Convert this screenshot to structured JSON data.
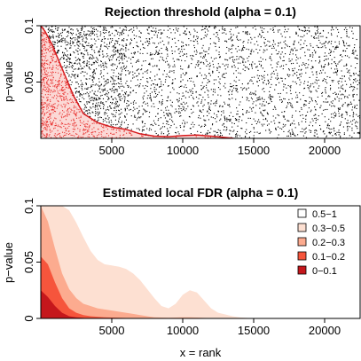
{
  "chart_data": [
    {
      "type": "scatter",
      "title": "Rejection threshold (alpha = 0.1)",
      "xlabel": "",
      "ylabel": "p−value",
      "xlim": [
        0,
        22500
      ],
      "ylim": [
        0,
        0.1
      ],
      "x_ticks": [
        5000,
        10000,
        15000,
        20000
      ],
      "x_tick_labels": [
        "5000",
        "10000",
        "15000",
        "20000"
      ],
      "y_ticks": [
        0.05,
        0.1
      ],
      "y_tick_labels": [
        "0.05",
        "0.1"
      ],
      "n_points": 4000,
      "point_color": "#000000",
      "rejected_color": "#e8312f",
      "threshold_color": "#d7191c",
      "threshold": {
        "x": [
          0,
          300,
          800,
          1500,
          2300,
          3000,
          4000,
          5000,
          6000,
          7000,
          8000,
          9000,
          10000,
          11000,
          12000,
          13000,
          13600
        ],
        "y": [
          0.1,
          0.095,
          0.083,
          0.062,
          0.038,
          0.022,
          0.014,
          0.01,
          0.008,
          0.004,
          0.002,
          0.0015,
          0.0025,
          0.003,
          0.002,
          0.0008,
          0
        ]
      }
    },
    {
      "type": "area",
      "title": "Estimated local FDR (alpha = 0.1)",
      "xlabel": "x = rank",
      "ylabel": "p−value",
      "xlim": [
        0,
        22500
      ],
      "ylim": [
        0,
        0.1
      ],
      "x_ticks": [
        5000,
        10000,
        15000,
        20000
      ],
      "x_tick_labels": [
        "5000",
        "10000",
        "15000",
        "20000"
      ],
      "y_ticks": [
        0,
        0.05,
        0.1
      ],
      "y_tick_labels": [
        "0",
        "0.05",
        "0.1"
      ],
      "legend_position": "top-right",
      "x": [
        0,
        500,
        1000,
        1500,
        2000,
        2500,
        3000,
        3500,
        4000,
        4500,
        5000,
        5500,
        6000,
        6500,
        7000,
        7500,
        8000,
        8500,
        9000,
        9500,
        10000,
        10500,
        11000,
        11500,
        12000,
        12500,
        13000,
        13500,
        14000,
        14500,
        15000
      ],
      "series": [
        {
          "name": "0.3−0.5",
          "color": "#fde0d2",
          "values": [
            0.1,
            0.1,
            0.1,
            0.1,
            0.096,
            0.085,
            0.072,
            0.06,
            0.052,
            0.048,
            0.047,
            0.046,
            0.044,
            0.04,
            0.034,
            0.026,
            0.018,
            0.011,
            0.009,
            0.013,
            0.021,
            0.025,
            0.023,
            0.016,
            0.009,
            0.005,
            0.0035,
            0.002,
            0.001,
            0.0005,
            0
          ]
        },
        {
          "name": "0.2−0.3",
          "color": "#fcab8f",
          "values": [
            0.1,
            0.086,
            0.062,
            0.04,
            0.026,
            0.018,
            0.013,
            0.011,
            0.009,
            0.008,
            0.007,
            0.006,
            0.005,
            0.004,
            0.003,
            0.002,
            0.001,
            0.0008,
            0.0006,
            0.0008,
            0.001,
            0.001,
            0.0008,
            0.0005,
            0.0003,
            0.0001,
            0,
            0,
            0,
            0,
            0
          ]
        },
        {
          "name": "0.1−0.2",
          "color": "#f6553c",
          "values": [
            0.055,
            0.048,
            0.032,
            0.018,
            0.009,
            0.005,
            0.003,
            0.002,
            0.0015,
            0.001,
            0.0008,
            0.0006,
            0.0004,
            0.0002,
            0.0001,
            0,
            0,
            0,
            0,
            0,
            0,
            0,
            0,
            0,
            0,
            0,
            0,
            0,
            0,
            0,
            0
          ]
        },
        {
          "name": "0−0.1",
          "color": "#c5171c",
          "values": [
            0.025,
            0.019,
            0.011,
            0.005,
            0.002,
            0.001,
            0.0005,
            0,
            0,
            0,
            0,
            0,
            0,
            0,
            0,
            0,
            0,
            0,
            0,
            0,
            0,
            0,
            0,
            0,
            0,
            0,
            0,
            0,
            0,
            0,
            0
          ]
        }
      ],
      "legend": [
        {
          "label": "0.5−1",
          "color": "#ffffff"
        },
        {
          "label": "0.3−0.5",
          "color": "#fde0d2"
        },
        {
          "label": "0.2−0.3",
          "color": "#fcab8f"
        },
        {
          "label": "0.1−0.2",
          "color": "#f6553c"
        },
        {
          "label": "0−0.1",
          "color": "#c5171c"
        }
      ]
    }
  ]
}
